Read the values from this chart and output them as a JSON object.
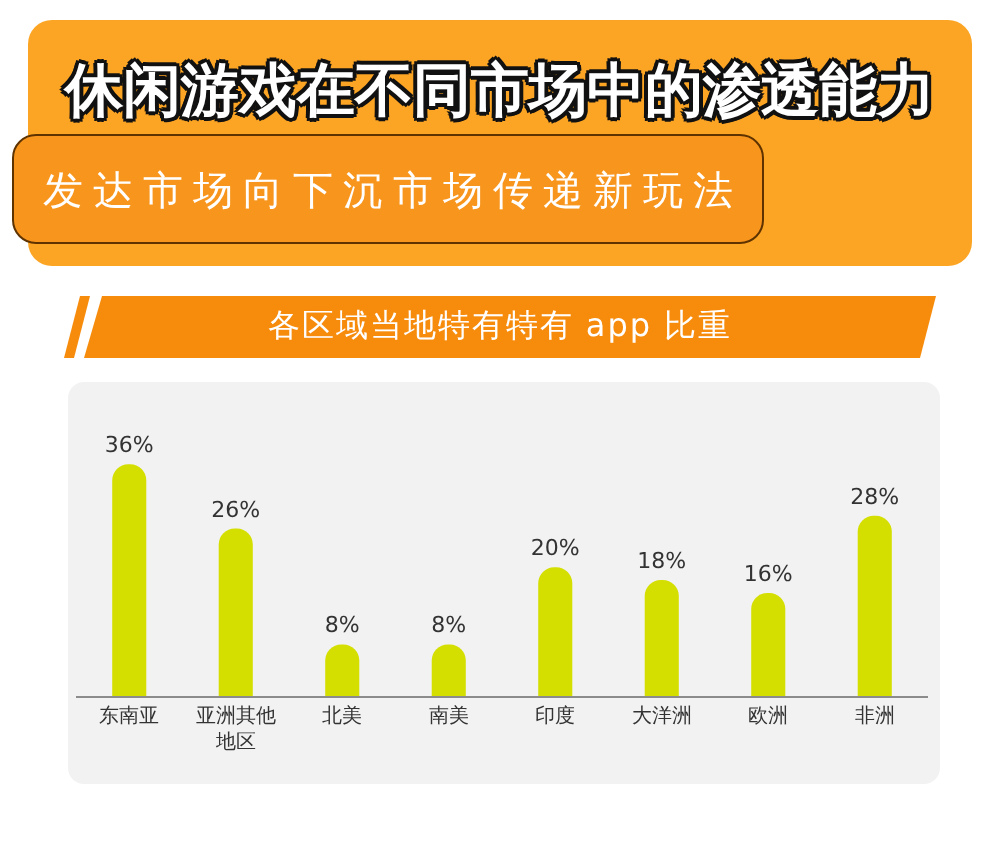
{
  "chart_data": {
    "type": "bar",
    "title": "休闲游戏在不同市场中的渗透能力",
    "subtitle": "发达市场向下沉市场传递新玩法",
    "annotations": [
      "各区域当地特有特有 app 比重"
    ],
    "categories": [
      "东南亚",
      "亚洲其他地区",
      "北美",
      "南美",
      "印度",
      "大洋洲",
      "欧洲",
      "非洲"
    ],
    "values": [
      36,
      26,
      8,
      8,
      20,
      18,
      16,
      28
    ],
    "color": "#d4df00",
    "value_labels": [
      "36%",
      "26%",
      "8%",
      "8%",
      "20%",
      "18%",
      "16%",
      "28%"
    ],
    "tick_labels": "x"
  }
}
